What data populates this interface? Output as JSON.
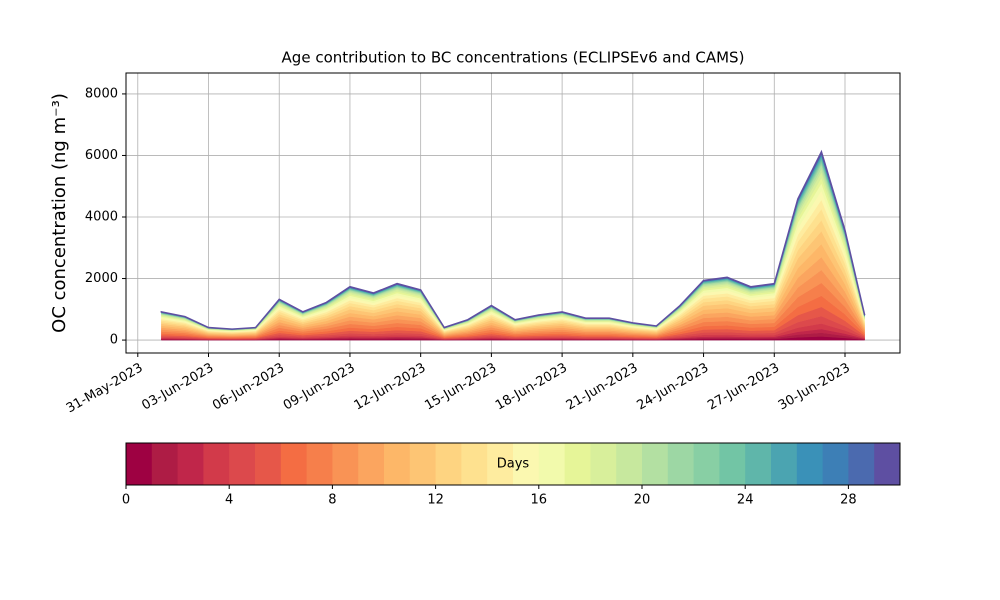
{
  "chart_data": {
    "type": "stackedarea",
    "title": "Age contribution to BC concentrations (ECLIPSEv6 and CAMS)",
    "ylabel": "OC concentration (ng m⁻³)",
    "x": [
      "2023-06-01T00:00Z",
      "2023-06-02T00:00Z",
      "2023-06-03T00:00Z",
      "2023-06-04T00:00Z",
      "2023-06-05T00:00Z",
      "2023-06-06T00:00Z",
      "2023-06-07T00:00Z",
      "2023-06-08T00:00Z",
      "2023-06-09T00:00Z",
      "2023-06-10T00:00Z",
      "2023-06-11T00:00Z",
      "2023-06-12T00:00Z",
      "2023-06-13T00:00Z",
      "2023-06-14T00:00Z",
      "2023-06-15T00:00Z",
      "2023-06-16T00:00Z",
      "2023-06-17T00:00Z",
      "2023-06-18T00:00Z",
      "2023-06-19T00:00Z",
      "2023-06-20T00:00Z",
      "2023-06-21T00:00Z",
      "2023-06-22T00:00Z",
      "2023-06-23T00:00Z",
      "2023-06-24T00:00Z",
      "2023-06-25T00:00Z",
      "2023-06-26T00:00Z",
      "2023-06-27T00:00Z",
      "2023-06-28T00:00Z",
      "2023-06-29T00:00Z",
      "2023-06-30T00:00Z",
      "2023-06-30T20:00Z"
    ],
    "xlim": [
      "2023-05-30T12:00Z",
      "2023-07-02T08:00Z"
    ],
    "xticks": [
      {
        "value": "2023-05-31T00:00Z",
        "label": "31-May-2023"
      },
      {
        "value": "2023-06-03T00:00Z",
        "label": "03-Jun-2023"
      },
      {
        "value": "2023-06-06T00:00Z",
        "label": "06-Jun-2023"
      },
      {
        "value": "2023-06-09T00:00Z",
        "label": "09-Jun-2023"
      },
      {
        "value": "2023-06-12T00:00Z",
        "label": "12-Jun-2023"
      },
      {
        "value": "2023-06-15T00:00Z",
        "label": "15-Jun-2023"
      },
      {
        "value": "2023-06-18T00:00Z",
        "label": "18-Jun-2023"
      },
      {
        "value": "2023-06-21T00:00Z",
        "label": "21-Jun-2023"
      },
      {
        "value": "2023-06-24T00:00Z",
        "label": "24-Jun-2023"
      },
      {
        "value": "2023-06-27T00:00Z",
        "label": "27-Jun-2023"
      },
      {
        "value": "2023-06-30T00:00Z",
        "label": "30-Jun-2023"
      }
    ],
    "ylim": [
      -420,
      8680
    ],
    "yticks": [
      0,
      2000,
      4000,
      6000,
      8000
    ],
    "grid": true,
    "series": [
      {
        "color": "#9e0142",
        "values": [
          18,
          15,
          8,
          7,
          8,
          26,
          18,
          24,
          34,
          30,
          36,
          32,
          8,
          13,
          22,
          13,
          16,
          18,
          14,
          14,
          11,
          9,
          22,
          38,
          40,
          34,
          36,
          90,
          120,
          70,
          16
        ]
      },
      {
        "color": "#ae1c45",
        "values": [
          18,
          15,
          8,
          7,
          8,
          26,
          18,
          24,
          34,
          30,
          36,
          32,
          8,
          13,
          22,
          13,
          16,
          18,
          14,
          14,
          11,
          9,
          22,
          38,
          40,
          34,
          36,
          90,
          120,
          70,
          16
        ]
      },
      {
        "color": "#c0264a",
        "values": [
          18,
          15,
          8,
          7,
          8,
          26,
          18,
          24,
          34,
          30,
          36,
          32,
          8,
          13,
          22,
          13,
          16,
          18,
          14,
          14,
          11,
          9,
          22,
          38,
          40,
          34,
          36,
          90,
          120,
          70,
          16
        ]
      },
      {
        "color": "#d23a4a",
        "values": [
          27,
          22.5,
          12,
          10.5,
          12,
          39,
          27,
          36,
          51,
          45,
          54,
          48,
          12,
          19.5,
          33,
          19.5,
          24,
          27,
          21,
          21,
          16.5,
          13.5,
          33,
          57,
          60,
          51,
          54,
          135,
          180,
          105,
          24
        ]
      },
      {
        "color": "#dc494c",
        "values": [
          36,
          30,
          16,
          14,
          16,
          52,
          36,
          48,
          68,
          60,
          72,
          64,
          16,
          26,
          44,
          26,
          32,
          36,
          28,
          28,
          22,
          18,
          44,
          76,
          80,
          68,
          72,
          180,
          240,
          140,
          32
        ]
      },
      {
        "color": "#e65749",
        "values": [
          45,
          37.5,
          20,
          17.5,
          20,
          65,
          45,
          60,
          85,
          75,
          90,
          80,
          20,
          32.5,
          55,
          32.5,
          40,
          45,
          35,
          35,
          27.5,
          22.5,
          55,
          95,
          100,
          85,
          90,
          225,
          300,
          175,
          40
        ]
      },
      {
        "color": "#f46d43",
        "values": [
          54,
          45,
          24,
          21,
          24,
          78,
          54,
          72,
          102,
          90,
          108,
          96,
          24,
          39,
          66,
          39,
          48,
          54,
          42,
          42,
          33,
          27,
          66,
          114,
          120,
          102,
          108,
          270,
          360,
          210,
          48
        ]
      },
      {
        "color": "#f67f4b",
        "values": [
          63,
          52.5,
          28,
          24.5,
          28,
          91,
          63,
          84,
          119,
          105,
          126,
          112,
          28,
          45.5,
          77,
          45.5,
          56,
          63,
          49,
          49,
          38.5,
          31.5,
          77,
          133,
          140,
          119,
          126,
          315,
          420,
          245,
          56
        ]
      },
      {
        "color": "#f99355",
        "values": [
          63,
          52.5,
          28,
          24.5,
          28,
          91,
          63,
          84,
          119,
          105,
          126,
          112,
          28,
          45.5,
          77,
          45.5,
          56,
          63,
          49,
          49,
          38.5,
          31.5,
          77,
          133,
          140,
          119,
          126,
          315,
          420,
          245,
          56
        ]
      },
      {
        "color": "#fba55f",
        "values": [
          63,
          52.5,
          28,
          24.5,
          28,
          91,
          63,
          84,
          119,
          105,
          126,
          112,
          28,
          45.5,
          77,
          45.5,
          56,
          63,
          49,
          49,
          38.5,
          31.5,
          77,
          133,
          140,
          119,
          126,
          315,
          420,
          245,
          56
        ]
      },
      {
        "color": "#fdb768",
        "values": [
          63,
          52.5,
          28,
          24.5,
          28,
          91,
          63,
          84,
          119,
          105,
          126,
          112,
          28,
          45.5,
          77,
          45.5,
          56,
          63,
          49,
          49,
          38.5,
          31.5,
          77,
          133,
          140,
          119,
          126,
          315,
          420,
          245,
          56
        ]
      },
      {
        "color": "#fdc574",
        "values": [
          63,
          52.5,
          28,
          24.5,
          28,
          91,
          63,
          84,
          119,
          105,
          126,
          112,
          28,
          45.5,
          77,
          45.5,
          56,
          63,
          49,
          49,
          38.5,
          31.5,
          77,
          133,
          140,
          119,
          126,
          315,
          420,
          245,
          56
        ]
      },
      {
        "color": "#fed481",
        "values": [
          54,
          45,
          24,
          21,
          24,
          78,
          54,
          72,
          102,
          90,
          108,
          96,
          24,
          39,
          66,
          39,
          48,
          54,
          42,
          42,
          33,
          27,
          66,
          114,
          120,
          102,
          108,
          270,
          360,
          210,
          48
        ]
      },
      {
        "color": "#fee18f",
        "values": [
          54,
          45,
          24,
          21,
          24,
          78,
          54,
          72,
          102,
          90,
          108,
          96,
          24,
          39,
          66,
          39,
          48,
          54,
          42,
          42,
          33,
          27,
          66,
          114,
          120,
          102,
          108,
          270,
          360,
          210,
          48
        ]
      },
      {
        "color": "#feec9f",
        "values": [
          45,
          37.5,
          20,
          17.5,
          20,
          65,
          45,
          60,
          85,
          75,
          90,
          80,
          20,
          32.5,
          55,
          32.5,
          40,
          45,
          35,
          35,
          27.5,
          22.5,
          55,
          95,
          100,
          85,
          90,
          225,
          300,
          175,
          40
        ]
      },
      {
        "color": "#fbf8b0",
        "values": [
          45,
          37.5,
          20,
          17.5,
          20,
          65,
          45,
          60,
          85,
          75,
          90,
          80,
          20,
          32.5,
          55,
          32.5,
          40,
          45,
          35,
          35,
          27.5,
          22.5,
          55,
          95,
          100,
          85,
          90,
          225,
          300,
          175,
          40
        ]
      },
      {
        "color": "#f2faac",
        "values": [
          36,
          30,
          16,
          14,
          16,
          52,
          36,
          48,
          68,
          60,
          72,
          64,
          16,
          26,
          44,
          26,
          32,
          36,
          28,
          28,
          22,
          18,
          44,
          76,
          80,
          68,
          72,
          180,
          240,
          140,
          32
        ]
      },
      {
        "color": "#e6f598",
        "values": [
          27,
          22.5,
          12,
          10.5,
          12,
          39,
          27,
          36,
          51,
          45,
          54,
          48,
          12,
          19.5,
          33,
          19.5,
          24,
          27,
          21,
          21,
          16.5,
          13.5,
          33,
          57,
          60,
          51,
          54,
          135,
          180,
          105,
          24
        ]
      },
      {
        "color": "#d8ef9b",
        "values": [
          27,
          22.5,
          12,
          10.5,
          12,
          39,
          27,
          36,
          51,
          45,
          54,
          48,
          12,
          19.5,
          33,
          19.5,
          24,
          27,
          21,
          21,
          16.5,
          13.5,
          33,
          57,
          60,
          51,
          54,
          135,
          180,
          105,
          24
        ]
      },
      {
        "color": "#c7e89e",
        "values": [
          18,
          15,
          8,
          7,
          8,
          26,
          18,
          24,
          34,
          30,
          36,
          32,
          8,
          13,
          22,
          13,
          16,
          18,
          14,
          14,
          11,
          9,
          22,
          38,
          40,
          34,
          36,
          90,
          120,
          70,
          16
        ]
      },
      {
        "color": "#b3e0a2",
        "values": [
          18,
          15,
          8,
          7,
          8,
          26,
          18,
          24,
          34,
          30,
          36,
          32,
          8,
          13,
          22,
          13,
          16,
          18,
          14,
          14,
          11,
          9,
          22,
          38,
          40,
          34,
          36,
          90,
          120,
          70,
          16
        ]
      },
      {
        "color": "#9dd7a4",
        "values": [
          9,
          7.5,
          4,
          3.5,
          4,
          13,
          9,
          12,
          17,
          15,
          18,
          16,
          4,
          6.5,
          11,
          6.5,
          8,
          9,
          7,
          7,
          5.5,
          4.5,
          11,
          19,
          20,
          17,
          18,
          45,
          60,
          35,
          8
        ]
      },
      {
        "color": "#88cfa4",
        "values": [
          9,
          7.5,
          4,
          3.5,
          4,
          13,
          9,
          12,
          17,
          15,
          18,
          16,
          4,
          6.5,
          11,
          6.5,
          8,
          9,
          7,
          7,
          5.5,
          4.5,
          11,
          19,
          20,
          17,
          18,
          45,
          60,
          35,
          8
        ]
      },
      {
        "color": "#72c5a5",
        "values": [
          9,
          7.5,
          4,
          3.5,
          4,
          13,
          9,
          12,
          17,
          15,
          18,
          16,
          4,
          6.5,
          11,
          6.5,
          8,
          9,
          7,
          7,
          5.5,
          4.5,
          11,
          19,
          20,
          17,
          18,
          45,
          60,
          35,
          8
        ]
      },
      {
        "color": "#5fb6aa",
        "values": [
          9,
          7.5,
          4,
          3.5,
          4,
          13,
          9,
          12,
          17,
          15,
          18,
          16,
          4,
          6.5,
          11,
          6.5,
          8,
          9,
          7,
          7,
          5.5,
          4.5,
          11,
          19,
          20,
          17,
          18,
          45,
          60,
          35,
          8
        ]
      },
      {
        "color": "#4ba4b1",
        "values": [
          9,
          7.5,
          4,
          3.5,
          4,
          13,
          9,
          12,
          17,
          15,
          18,
          16,
          4,
          6.5,
          11,
          6.5,
          8,
          9,
          7,
          7,
          5.5,
          4.5,
          11,
          19,
          20,
          17,
          18,
          45,
          60,
          35,
          8
        ]
      },
      {
        "color": "#3a91b8",
        "values": [
          4.5,
          3.75,
          2,
          1.75,
          2,
          6.5,
          4.5,
          6,
          8.5,
          7.5,
          9,
          8,
          2,
          3.25,
          5.5,
          3.25,
          4,
          4.5,
          3.5,
          3.5,
          2.75,
          2.25,
          5.5,
          9.5,
          10,
          8.5,
          9,
          22.5,
          30,
          17.5,
          4
        ]
      },
      {
        "color": "#3d7fb6",
        "values": [
          4.5,
          3.75,
          2,
          1.75,
          2,
          6.5,
          4.5,
          6,
          8.5,
          7.5,
          9,
          8,
          2,
          3.25,
          5.5,
          3.25,
          4,
          4.5,
          3.5,
          3.5,
          2.75,
          2.25,
          5.5,
          9.5,
          10,
          8.5,
          9,
          22.5,
          30,
          17.5,
          4
        ]
      },
      {
        "color": "#4b6aaf",
        "values": [
          4.5,
          3.75,
          2,
          1.75,
          2,
          6.5,
          4.5,
          6,
          8.5,
          7.5,
          9,
          8,
          2,
          3.25,
          5.5,
          3.25,
          4,
          4.5,
          3.5,
          3.5,
          2.75,
          2.25,
          5.5,
          9.5,
          10,
          8.5,
          9,
          22.5,
          30,
          17.5,
          4
        ]
      },
      {
        "color": "#5e4fa2",
        "values": [
          4.5,
          3.75,
          2,
          1.75,
          2,
          6.5,
          4.5,
          6,
          8.5,
          7.5,
          9,
          8,
          2,
          3.25,
          5.5,
          3.25,
          4,
          4.5,
          3.5,
          3.5,
          2.75,
          2.25,
          5.5,
          9.5,
          10,
          8.5,
          9,
          22.5,
          30,
          17.5,
          4
        ]
      }
    ],
    "colorbar": {
      "label": "Days",
      "lim": [
        0,
        30
      ],
      "ticks": [
        0,
        4,
        8,
        12,
        16,
        20,
        24,
        28
      ]
    }
  }
}
